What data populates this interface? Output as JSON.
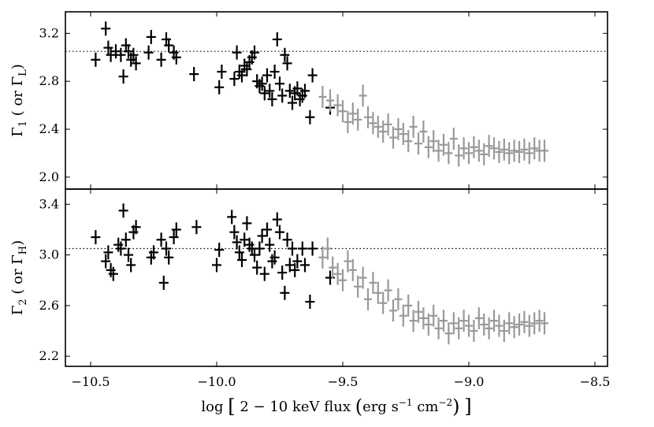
{
  "chart_data": {
    "type": "scatter",
    "x_axis": {
      "label_parts": [
        "log",
        "[",
        "2 − 10 keV flux",
        "(",
        "erg s",
        "−1",
        " cm",
        "−2",
        ")",
        "]"
      ],
      "xlim": [
        -10.6,
        -8.45
      ],
      "ticks": [
        -10.5,
        -10.0,
        -9.5,
        -9.0,
        -8.5
      ],
      "tick_labels": [
        "−10.5",
        "−10.0",
        "−9.5",
        "−9.0",
        "−8.5"
      ]
    },
    "panels": [
      {
        "ylabel_parts": [
          "Γ",
          "1",
          " ( or Γ",
          "L",
          ")"
        ],
        "ylim": [
          1.9,
          3.38
        ],
        "yticks": [
          2.0,
          2.4,
          2.8,
          3.2
        ],
        "ytick_labels": [
          "2.0",
          "2.4",
          "2.8",
          "3.2"
        ],
        "reference_y": 3.05,
        "series": [
          {
            "color": "#000000",
            "points": [
              [
                -10.48,
                2.98
              ],
              [
                -10.44,
                3.24
              ],
              [
                -10.43,
                3.08
              ],
              [
                -10.42,
                3.02
              ],
              [
                -10.4,
                3.05
              ],
              [
                -10.38,
                3.02
              ],
              [
                -10.37,
                2.84
              ],
              [
                -10.36,
                3.1
              ],
              [
                -10.35,
                3.05
              ],
              [
                -10.34,
                2.98
              ],
              [
                -10.33,
                3.02
              ],
              [
                -10.32,
                2.95
              ],
              [
                -10.27,
                3.04
              ],
              [
                -10.26,
                3.17
              ],
              [
                -10.22,
                2.98
              ],
              [
                -10.2,
                3.15
              ],
              [
                -10.19,
                3.1
              ],
              [
                -10.17,
                3.04
              ],
              [
                -10.16,
                3.0
              ],
              [
                -10.09,
                2.86
              ],
              [
                -9.99,
                2.75
              ],
              [
                -9.98,
                2.88
              ],
              [
                -9.93,
                2.82
              ],
              [
                -9.92,
                3.04
              ],
              [
                -9.91,
                2.88
              ],
              [
                -9.9,
                2.85
              ],
              [
                -9.89,
                2.93
              ],
              [
                -9.88,
                2.9
              ],
              [
                -9.87,
                2.96
              ],
              [
                -9.86,
                3.0
              ],
              [
                -9.85,
                3.04
              ],
              [
                -9.84,
                2.8
              ],
              [
                -9.83,
                2.76
              ],
              [
                -9.82,
                2.78
              ],
              [
                -9.81,
                2.7
              ],
              [
                -9.8,
                2.85
              ],
              [
                -9.79,
                2.72
              ],
              [
                -9.78,
                2.65
              ],
              [
                -9.77,
                2.88
              ],
              [
                -9.76,
                3.15
              ],
              [
                -9.75,
                2.78
              ],
              [
                -9.74,
                2.68
              ],
              [
                -9.73,
                3.02
              ],
              [
                -9.72,
                2.95
              ],
              [
                -9.71,
                2.72
              ],
              [
                -9.7,
                2.62
              ],
              [
                -9.69,
                2.7
              ],
              [
                -9.68,
                2.74
              ],
              [
                -9.67,
                2.65
              ],
              [
                -9.66,
                2.68
              ],
              [
                -9.65,
                2.72
              ],
              [
                -9.63,
                2.5
              ],
              [
                -9.62,
                2.85
              ],
              [
                -9.55,
                2.58
              ]
            ]
          },
          {
            "color": "#999999",
            "points": [
              [
                -9.58,
                2.67
              ],
              [
                -9.55,
                2.64
              ],
              [
                -9.52,
                2.6
              ],
              [
                -9.5,
                2.55
              ],
              [
                -9.48,
                2.46
              ],
              [
                -9.46,
                2.53
              ],
              [
                -9.44,
                2.48
              ],
              [
                -9.42,
                2.68
              ],
              [
                -9.4,
                2.5
              ],
              [
                -9.38,
                2.45
              ],
              [
                -9.36,
                2.42
              ],
              [
                -9.34,
                2.38
              ],
              [
                -9.32,
                2.44
              ],
              [
                -9.3,
                2.33
              ],
              [
                -9.28,
                2.4
              ],
              [
                -9.26,
                2.36
              ],
              [
                -9.24,
                2.3
              ],
              [
                -9.22,
                2.42
              ],
              [
                -9.2,
                2.28
              ],
              [
                -9.18,
                2.38
              ],
              [
                -9.16,
                2.25
              ],
              [
                -9.14,
                2.3
              ],
              [
                -9.12,
                2.22
              ],
              [
                -9.1,
                2.27
              ],
              [
                -9.08,
                2.2
              ],
              [
                -9.06,
                2.32
              ],
              [
                -9.04,
                2.18
              ],
              [
                -9.02,
                2.24
              ],
              [
                -9.0,
                2.2
              ],
              [
                -8.98,
                2.25
              ],
              [
                -8.96,
                2.22
              ],
              [
                -8.94,
                2.19
              ],
              [
                -8.92,
                2.26
              ],
              [
                -8.9,
                2.24
              ],
              [
                -8.88,
                2.21
              ],
              [
                -8.86,
                2.23
              ],
              [
                -8.84,
                2.2
              ],
              [
                -8.82,
                2.22
              ],
              [
                -8.8,
                2.21
              ],
              [
                -8.78,
                2.23
              ],
              [
                -8.76,
                2.2
              ],
              [
                -8.74,
                2.24
              ],
              [
                -8.72,
                2.22
              ],
              [
                -8.7,
                2.22
              ]
            ]
          }
        ]
      },
      {
        "ylabel_parts": [
          "Γ",
          "2",
          " ( or Γ",
          "H",
          ")"
        ],
        "ylim": [
          2.12,
          3.52
        ],
        "yticks": [
          2.2,
          2.6,
          3.0,
          3.4
        ],
        "ytick_labels": [
          "2.2",
          "2.6",
          "3.0",
          "3.4"
        ],
        "reference_y": 3.05,
        "series": [
          {
            "color": "#000000",
            "points": [
              [
                -10.48,
                3.14
              ],
              [
                -10.44,
                2.95
              ],
              [
                -10.43,
                3.02
              ],
              [
                -10.42,
                2.88
              ],
              [
                -10.41,
                2.85
              ],
              [
                -10.39,
                3.08
              ],
              [
                -10.38,
                3.05
              ],
              [
                -10.37,
                3.35
              ],
              [
                -10.36,
                3.12
              ],
              [
                -10.35,
                3.0
              ],
              [
                -10.34,
                2.92
              ],
              [
                -10.33,
                3.18
              ],
              [
                -10.32,
                3.22
              ],
              [
                -10.26,
                2.98
              ],
              [
                -10.25,
                3.02
              ],
              [
                -10.22,
                3.12
              ],
              [
                -10.21,
                2.78
              ],
              [
                -10.2,
                3.05
              ],
              [
                -10.19,
                2.98
              ],
              [
                -10.17,
                3.14
              ],
              [
                -10.16,
                3.2
              ],
              [
                -10.08,
                3.22
              ],
              [
                -10.0,
                2.92
              ],
              [
                -9.99,
                3.04
              ],
              [
                -9.94,
                3.3
              ],
              [
                -9.93,
                3.18
              ],
              [
                -9.92,
                3.1
              ],
              [
                -9.91,
                3.02
              ],
              [
                -9.9,
                2.96
              ],
              [
                -9.89,
                3.12
              ],
              [
                -9.88,
                3.25
              ],
              [
                -9.87,
                3.08
              ],
              [
                -9.86,
                3.05
              ],
              [
                -9.85,
                3.0
              ],
              [
                -9.84,
                2.9
              ],
              [
                -9.83,
                3.05
              ],
              [
                -9.82,
                3.15
              ],
              [
                -9.81,
                2.85
              ],
              [
                -9.8,
                3.2
              ],
              [
                -9.79,
                3.08
              ],
              [
                -9.78,
                2.95
              ],
              [
                -9.77,
                2.98
              ],
              [
                -9.76,
                3.28
              ],
              [
                -9.75,
                3.18
              ],
              [
                -9.74,
                2.86
              ],
              [
                -9.73,
                2.7
              ],
              [
                -9.72,
                3.12
              ],
              [
                -9.71,
                2.92
              ],
              [
                -9.7,
                3.05
              ],
              [
                -9.69,
                2.88
              ],
              [
                -9.68,
                2.95
              ],
              [
                -9.66,
                3.05
              ],
              [
                -9.65,
                2.92
              ],
              [
                -9.63,
                2.63
              ],
              [
                -9.62,
                3.05
              ],
              [
                -9.55,
                2.82
              ]
            ]
          },
          {
            "color": "#999999",
            "points": [
              [
                -9.58,
                2.98
              ],
              [
                -9.56,
                3.05
              ],
              [
                -9.54,
                2.9
              ],
              [
                -9.52,
                2.85
              ],
              [
                -9.5,
                2.8
              ],
              [
                -9.48,
                2.95
              ],
              [
                -9.46,
                2.88
              ],
              [
                -9.44,
                2.75
              ],
              [
                -9.42,
                2.82
              ],
              [
                -9.4,
                2.65
              ],
              [
                -9.38,
                2.78
              ],
              [
                -9.36,
                2.7
              ],
              [
                -9.34,
                2.62
              ],
              [
                -9.32,
                2.72
              ],
              [
                -9.3,
                2.56
              ],
              [
                -9.28,
                2.65
              ],
              [
                -9.26,
                2.52
              ],
              [
                -9.24,
                2.6
              ],
              [
                -9.22,
                2.48
              ],
              [
                -9.2,
                2.55
              ],
              [
                -9.18,
                2.5
              ],
              [
                -9.16,
                2.45
              ],
              [
                -9.14,
                2.52
              ],
              [
                -9.12,
                2.42
              ],
              [
                -9.1,
                2.48
              ],
              [
                -9.08,
                2.38
              ],
              [
                -9.06,
                2.46
              ],
              [
                -9.04,
                2.42
              ],
              [
                -9.02,
                2.48
              ],
              [
                -9.0,
                2.44
              ],
              [
                -8.98,
                2.4
              ],
              [
                -8.96,
                2.5
              ],
              [
                -8.94,
                2.45
              ],
              [
                -8.92,
                2.42
              ],
              [
                -8.9,
                2.48
              ],
              [
                -8.88,
                2.44
              ],
              [
                -8.86,
                2.4
              ],
              [
                -8.84,
                2.46
              ],
              [
                -8.82,
                2.43
              ],
              [
                -8.8,
                2.45
              ],
              [
                -8.78,
                2.47
              ],
              [
                -8.76,
                2.44
              ],
              [
                -8.74,
                2.46
              ],
              [
                -8.72,
                2.48
              ],
              [
                -8.7,
                2.46
              ]
            ]
          }
        ]
      }
    ]
  }
}
